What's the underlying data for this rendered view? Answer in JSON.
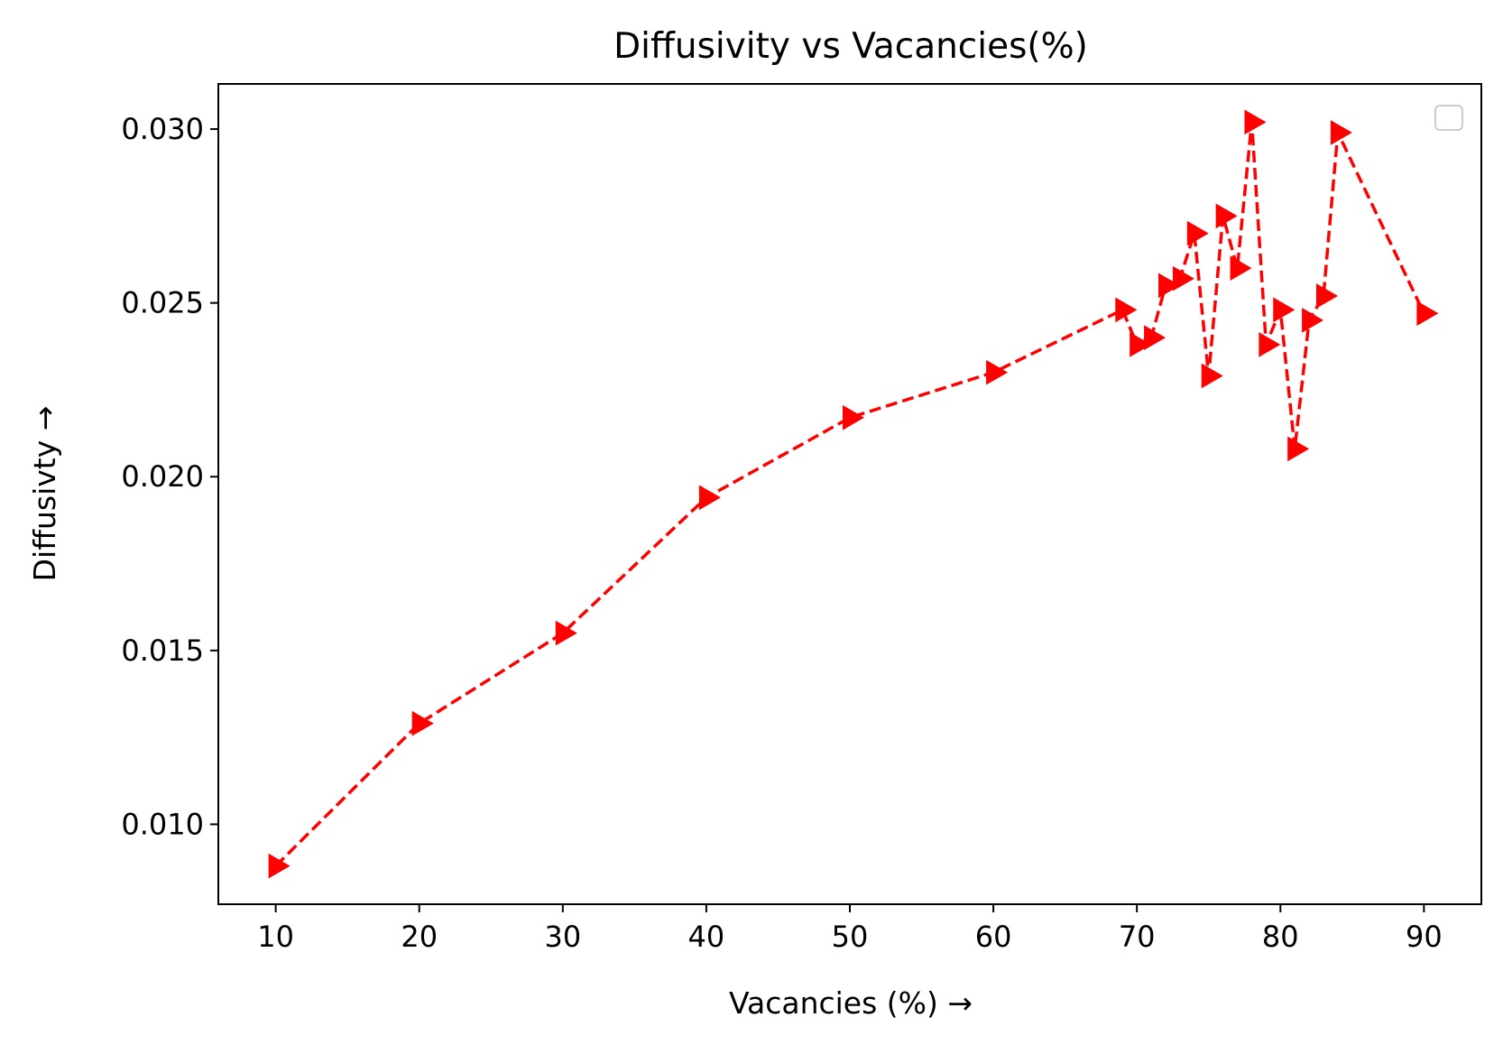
{
  "chart_data": {
    "type": "line",
    "title": "Diffusivity vs Vacancies(%)",
    "xlabel": "Vacancies (%) →",
    "ylabel": "Diffusivty →",
    "xlim": [
      6,
      94
    ],
    "ylim": [
      0.0077,
      0.0313
    ],
    "xticks": [
      10,
      20,
      30,
      40,
      50,
      60,
      70,
      80,
      90
    ],
    "yticks": [
      0.01,
      0.015,
      0.02,
      0.025,
      0.03
    ],
    "xtick_labels": [
      "10",
      "20",
      "30",
      "40",
      "50",
      "60",
      "70",
      "80",
      "90"
    ],
    "ytick_labels": [
      "0.010",
      "0.015",
      "0.020",
      "0.025",
      "0.030"
    ],
    "grid": false,
    "legend": {
      "placement": "upper right",
      "entries": []
    },
    "series": [
      {
        "color": "#ff0000",
        "line_style": "dashed",
        "marker": "triangle-right",
        "x": [
          10,
          20,
          30,
          40,
          50,
          60,
          69,
          70,
          71,
          72,
          73,
          74,
          75,
          76,
          77,
          78,
          79,
          80,
          81,
          82,
          83,
          84,
          90
        ],
        "y": [
          0.0088,
          0.0129,
          0.0155,
          0.0194,
          0.0217,
          0.023,
          0.0248,
          0.0238,
          0.024,
          0.0255,
          0.0257,
          0.027,
          0.0229,
          0.0275,
          0.026,
          0.0302,
          0.0238,
          0.0248,
          0.0208,
          0.0245,
          0.0252,
          0.0299,
          0.0247
        ]
      }
    ]
  }
}
